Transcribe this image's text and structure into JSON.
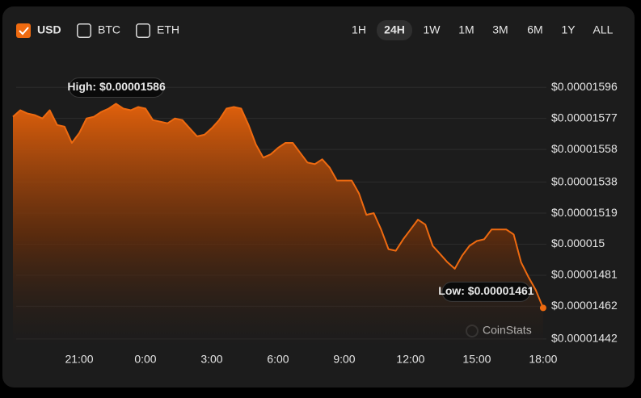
{
  "controls": {
    "currencies": [
      {
        "label": "USD",
        "checked": true
      },
      {
        "label": "BTC",
        "checked": false
      },
      {
        "label": "ETH",
        "checked": false
      }
    ],
    "ranges": [
      {
        "label": "1H",
        "active": false
      },
      {
        "label": "24H",
        "active": true
      },
      {
        "label": "1W",
        "active": false
      },
      {
        "label": "1M",
        "active": false
      },
      {
        "label": "3M",
        "active": false
      },
      {
        "label": "6M",
        "active": false
      },
      {
        "label": "1Y",
        "active": false
      },
      {
        "label": "ALL",
        "active": false
      }
    ]
  },
  "chart_data": {
    "type": "area",
    "color": "#ee6a10",
    "grid": true,
    "watermark": "CoinStats",
    "high_label": "High: $0.00001586",
    "low_label": "Low: $0.00001461",
    "categories": [
      null,
      null,
      null,
      null,
      null,
      null,
      null,
      null,
      null,
      "21:00",
      null,
      null,
      null,
      null,
      null,
      null,
      null,
      null,
      "0:00",
      null,
      null,
      null,
      null,
      null,
      null,
      null,
      null,
      "3:00",
      null,
      null,
      null,
      null,
      null,
      null,
      null,
      null,
      "6:00",
      null,
      null,
      null,
      null,
      null,
      null,
      null,
      null,
      "9:00",
      null,
      null,
      null,
      null,
      null,
      null,
      null,
      null,
      "12:00",
      null,
      null,
      null,
      null,
      null,
      null,
      null,
      null,
      "15:00",
      null,
      null,
      null,
      null,
      null,
      null,
      null,
      null,
      "18:00"
    ],
    "values": [
      1.578e-05,
      1.582e-05,
      1.58e-05,
      1.579e-05,
      1.577e-05,
      1.582e-05,
      1.573e-05,
      1.572e-05,
      1.562e-05,
      1.568e-05,
      1.577e-05,
      1.578e-05,
      1.581e-05,
      1.583e-05,
      1.586e-05,
      1.583e-05,
      1.582e-05,
      1.584e-05,
      1.583e-05,
      1.576e-05,
      1.575e-05,
      1.574e-05,
      1.577e-05,
      1.576e-05,
      1.571e-05,
      1.566e-05,
      1.567e-05,
      1.571e-05,
      1.576e-05,
      1.583e-05,
      1.584e-05,
      1.583e-05,
      1.573e-05,
      1.561e-05,
      1.553e-05,
      1.555e-05,
      1.559e-05,
      1.562e-05,
      1.562e-05,
      1.556e-05,
      1.55e-05,
      1.549e-05,
      1.552e-05,
      1.547e-05,
      1.539e-05,
      1.539e-05,
      1.539e-05,
      1.531e-05,
      1.518e-05,
      1.519e-05,
      1.509e-05,
      1.497e-05,
      1.496e-05,
      1.503e-05,
      1.509e-05,
      1.515e-05,
      1.512e-05,
      1.499e-05,
      1.494e-05,
      1.489e-05,
      1.485e-05,
      1.493e-05,
      1.499e-05,
      1.502e-05,
      1.503e-05,
      1.509e-05,
      1.509e-05,
      1.509e-05,
      1.506e-05,
      1.489e-05,
      1.48e-05,
      1.472e-05,
      1.461e-05
    ],
    "ylim": [
      1.437e-05,
      1.605e-05
    ],
    "yticks": [
      {
        "value": 1.596e-05,
        "label": "$0.00001596"
      },
      {
        "value": 1.577e-05,
        "label": "$0.00001577"
      },
      {
        "value": 1.558e-05,
        "label": "$0.00001558"
      },
      {
        "value": 1.538e-05,
        "label": "$0.00001538"
      },
      {
        "value": 1.519e-05,
        "label": "$0.00001519"
      },
      {
        "value": 1.5e-05,
        "label": "$0.000015"
      },
      {
        "value": 1.481e-05,
        "label": "$0.00001481"
      },
      {
        "value": 1.462e-05,
        "label": "$0.00001462"
      },
      {
        "value": 1.442e-05,
        "label": "$0.00001442"
      }
    ]
  }
}
